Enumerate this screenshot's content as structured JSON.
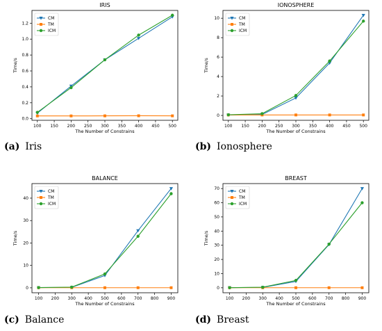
{
  "colors": {
    "CM": "#1f77b4",
    "TM": "#ff7f0e",
    "ICM": "#2ca02c"
  },
  "chart_data": [
    {
      "type": "line",
      "caption_letter": "(a)",
      "caption_text": "Iris",
      "title": "IRIS",
      "xlabel": "The Number of Constrains",
      "ylabel": "Time/s",
      "x": [
        100,
        200,
        300,
        400,
        500
      ],
      "xlim": [
        84,
        516
      ],
      "ylim": [
        -0.02,
        1.36
      ],
      "xticks": [
        100,
        150,
        200,
        250,
        300,
        350,
        400,
        450,
        500
      ],
      "yticks": [
        0.0,
        0.2,
        0.4,
        0.6,
        0.8,
        1.0,
        1.2
      ],
      "ytick_labels": [
        "0.0",
        "0.2",
        "0.4",
        "0.6",
        "0.8",
        "1.0",
        "1.2"
      ],
      "legend": "top-left",
      "series": [
        {
          "name": "CM",
          "marker": "triangle-down",
          "values": [
            0.07,
            0.41,
            0.74,
            1.01,
            1.28
          ]
        },
        {
          "name": "TM",
          "marker": "square",
          "values": [
            0.035,
            0.035,
            0.036,
            0.037,
            0.036
          ]
        },
        {
          "name": "ICM",
          "marker": "circle",
          "values": [
            0.08,
            0.39,
            0.74,
            1.05,
            1.3
          ]
        }
      ]
    },
    {
      "type": "line",
      "caption_letter": "(b)",
      "caption_text": "Ionosphere",
      "title": "IONOSPHERE",
      "xlabel": "The Number of Constrains",
      "ylabel": "Time/s",
      "x": [
        100,
        200,
        300,
        400,
        500
      ],
      "xlim": [
        84,
        516
      ],
      "ylim": [
        -0.5,
        10.8
      ],
      "xticks": [
        100,
        150,
        200,
        250,
        300,
        350,
        400,
        450,
        500
      ],
      "yticks": [
        0,
        2,
        4,
        6,
        8,
        10
      ],
      "ytick_labels": [
        "0",
        "2",
        "4",
        "6",
        "8",
        "10"
      ],
      "legend": "top-left",
      "series": [
        {
          "name": "CM",
          "marker": "triangle-down",
          "values": [
            0.05,
            0.1,
            1.8,
            5.4,
            10.3
          ]
        },
        {
          "name": "TM",
          "marker": "square",
          "values": [
            0.05,
            0.05,
            0.05,
            0.05,
            0.05
          ]
        },
        {
          "name": "ICM",
          "marker": "circle",
          "values": [
            0.07,
            0.18,
            2.05,
            5.6,
            9.7
          ]
        }
      ]
    },
    {
      "type": "line",
      "caption_letter": "(c)",
      "caption_text": "Balance",
      "title": "BALANCE",
      "xlabel": "The Number of Constrains",
      "ylabel": "Time/s",
      "x": [
        100,
        300,
        500,
        700,
        900
      ],
      "xlim": [
        60,
        940
      ],
      "ylim": [
        -2.2,
        46.5
      ],
      "xticks": [
        100,
        200,
        300,
        400,
        500,
        600,
        700,
        800,
        900
      ],
      "yticks": [
        0,
        10,
        20,
        30,
        40
      ],
      "ytick_labels": [
        "0",
        "10",
        "20",
        "30",
        "40"
      ],
      "legend": "top-left",
      "series": [
        {
          "name": "CM",
          "marker": "triangle-down",
          "values": [
            0.1,
            0.2,
            5.5,
            25.5,
            44.3
          ]
        },
        {
          "name": "TM",
          "marker": "square",
          "values": [
            0.05,
            0.05,
            0.05,
            0.05,
            0.05
          ]
        },
        {
          "name": "ICM",
          "marker": "circle",
          "values": [
            0.1,
            0.3,
            6.2,
            23.0,
            42.0
          ]
        }
      ]
    },
    {
      "type": "line",
      "caption_letter": "(d)",
      "caption_text": "Breast",
      "title": "BREAST",
      "xlabel": "The Number of Constrains",
      "ylabel": "Time/s",
      "x": [
        100,
        300,
        500,
        700,
        900
      ],
      "xlim": [
        60,
        940
      ],
      "ylim": [
        -3.5,
        73.5
      ],
      "xticks": [
        100,
        200,
        300,
        400,
        500,
        600,
        700,
        800,
        900
      ],
      "yticks": [
        0,
        10,
        20,
        30,
        40,
        50,
        60,
        70
      ],
      "ytick_labels": [
        "0",
        "10",
        "20",
        "30",
        "40",
        "50",
        "60",
        "70"
      ],
      "legend": "top-left",
      "series": [
        {
          "name": "CM",
          "marker": "triangle-down",
          "values": [
            0.1,
            0.3,
            4.5,
            30.5,
            70.0
          ]
        },
        {
          "name": "TM",
          "marker": "square",
          "values": [
            0.05,
            0.05,
            0.05,
            0.05,
            0.05
          ]
        },
        {
          "name": "ICM",
          "marker": "circle",
          "values": [
            0.1,
            0.4,
            5.2,
            30.8,
            60.0
          ]
        }
      ]
    }
  ]
}
